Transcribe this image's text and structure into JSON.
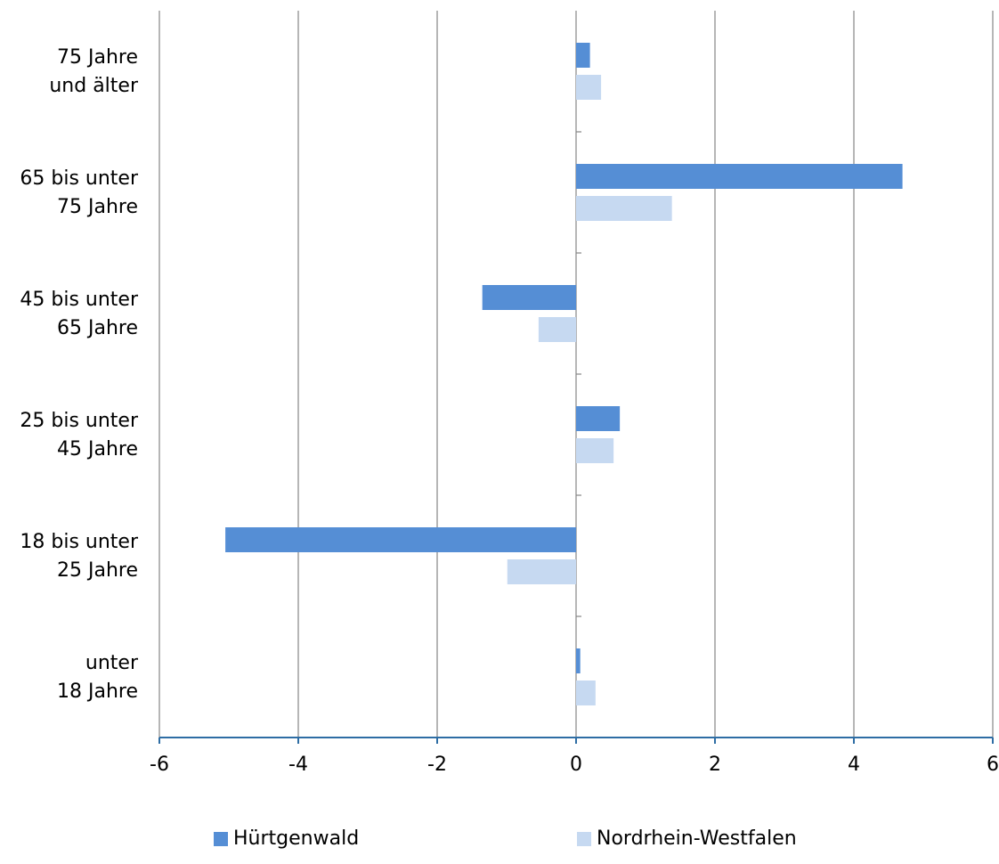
{
  "chart_data": {
    "type": "bar",
    "orientation": "horizontal",
    "categories": [
      [
        "75 Jahre",
        "und älter"
      ],
      [
        "65 bis unter",
        "75 Jahre"
      ],
      [
        "45 bis unter",
        "65 Jahre"
      ],
      [
        "25 bis unter",
        "45 Jahre"
      ],
      [
        "18 bis unter",
        "25 Jahre"
      ],
      [
        "unter",
        "18 Jahre"
      ]
    ],
    "series": [
      {
        "name": "Hürtgenwald",
        "color": "#558ed5",
        "values": [
          0.2,
          4.7,
          -1.35,
          0.63,
          -5.05,
          0.06
        ]
      },
      {
        "name": "Nordrhein-Westfalen",
        "color": "#c6d9f1",
        "values": [
          0.36,
          1.38,
          -0.54,
          0.54,
          -0.99,
          0.28
        ]
      }
    ],
    "xlim": [
      -6,
      6
    ],
    "xticks": [
      "-6",
      "-4",
      "-2",
      "0",
      "2",
      "4",
      "6"
    ],
    "grid": true,
    "gridline_color": "#868686",
    "axis_color": "#2e6da4",
    "legend_position": "bottom"
  }
}
